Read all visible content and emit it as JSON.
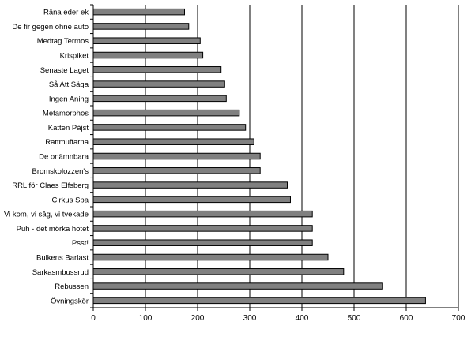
{
  "chart_data": {
    "type": "bar",
    "orientation": "horizontal",
    "categories": [
      "Råna eder ek",
      "De fir gegen ohne auto",
      "Medtag Termos",
      "Krispiket",
      "Senaste Laget",
      "Så Att Säga",
      "Ingen Aning",
      "Metamorphos",
      "Katten Pàjst",
      "Rattmuffarna",
      "De onämnbara",
      "Bromskolozzen's",
      "RRL för Claes Elfsberg",
      "Cirkus Spa",
      "Vi kom, vi såg, vi tvekade",
      "Puh - det mörka hotet",
      "Psst!",
      "Bulkens Barlast",
      "Sarkasmbussrud",
      "Rebussen",
      "Övningskör"
    ],
    "values": [
      175,
      183,
      205,
      210,
      245,
      252,
      255,
      280,
      292,
      308,
      320,
      320,
      372,
      378,
      420,
      420,
      420,
      450,
      480,
      555,
      637
    ],
    "xlim": [
      0,
      700
    ],
    "xticks": [
      "0",
      "100",
      "200",
      "300",
      "400",
      "500",
      "600",
      "700"
    ],
    "grid": "vertical",
    "bar_color": "#808080",
    "title": "",
    "xlabel": "",
    "ylabel": ""
  }
}
